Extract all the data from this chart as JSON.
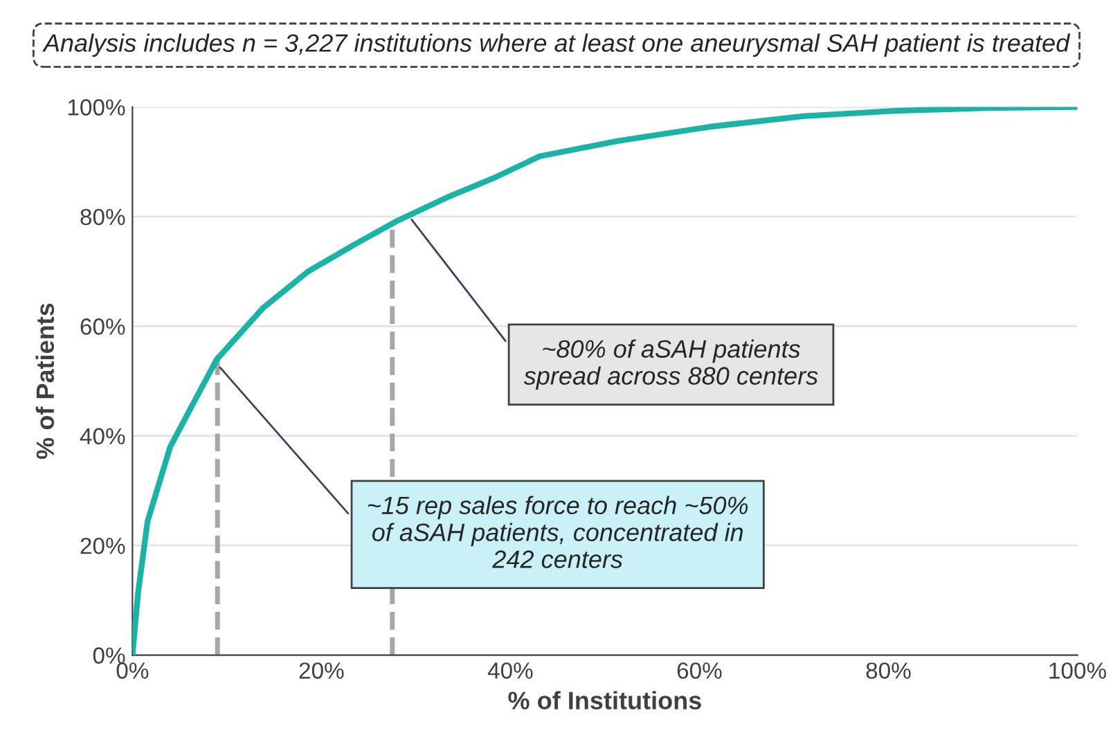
{
  "chart_data": {
    "type": "line",
    "xlabel": "% of Institutions",
    "ylabel": "% of Patients",
    "x": [
      0,
      0.6,
      1.6,
      4.0,
      8.9,
      13.8,
      18.6,
      23.6,
      28.0,
      33.3,
      38.2,
      43.1,
      51.4,
      61.2,
      71.0,
      80.7,
      90.5,
      100
    ],
    "series": [
      {
        "color": "#1ab3a6",
        "values": [
          0,
          11.4,
          24.4,
          38,
          53.9,
          63.3,
          70,
          75,
          79.2,
          83.5,
          87,
          91,
          93.8,
          96.4,
          98.3,
          99.3,
          99.8,
          100
        ]
      }
    ],
    "xlim": [
      0,
      100
    ],
    "ylim": [
      0,
      100
    ],
    "xticks": [
      {
        "value": 0,
        "label": "0%"
      },
      {
        "value": 20,
        "label": "20%"
      },
      {
        "value": 40,
        "label": "40%"
      },
      {
        "value": 60,
        "label": "60%"
      },
      {
        "value": 80,
        "label": "80%"
      },
      {
        "value": 100,
        "label": "100%"
      }
    ],
    "yticks": [
      {
        "value": 0,
        "label": "0%"
      },
      {
        "value": 20,
        "label": "20%"
      },
      {
        "value": 40,
        "label": "40%"
      },
      {
        "value": 60,
        "label": "60%"
      },
      {
        "value": 80,
        "label": "80%"
      },
      {
        "value": 100,
        "label": "100%"
      }
    ],
    "grid": "y",
    "marker": "none",
    "line_style": "solid",
    "ref_lines": [
      {
        "axis": "x",
        "value": 9,
        "color": "#a6a6a6",
        "line_style": "dashed"
      },
      {
        "axis": "x",
        "value": 27.5,
        "color": "#a6a6a6",
        "line_style": "dashed"
      }
    ],
    "annotations": [
      "Analysis includes n = 3,227 institutions where at least one aneurysmal SAH patient is treated",
      {
        "text": "~80% of aSAH patients\nspread across 880 centers",
        "x": 29.3,
        "y": 80
      },
      {
        "text": "~15 rep sales force to reach ~50%\nof aSAH patients, concentrated in\n242 centers",
        "x": 9,
        "y": 53
      }
    ]
  }
}
